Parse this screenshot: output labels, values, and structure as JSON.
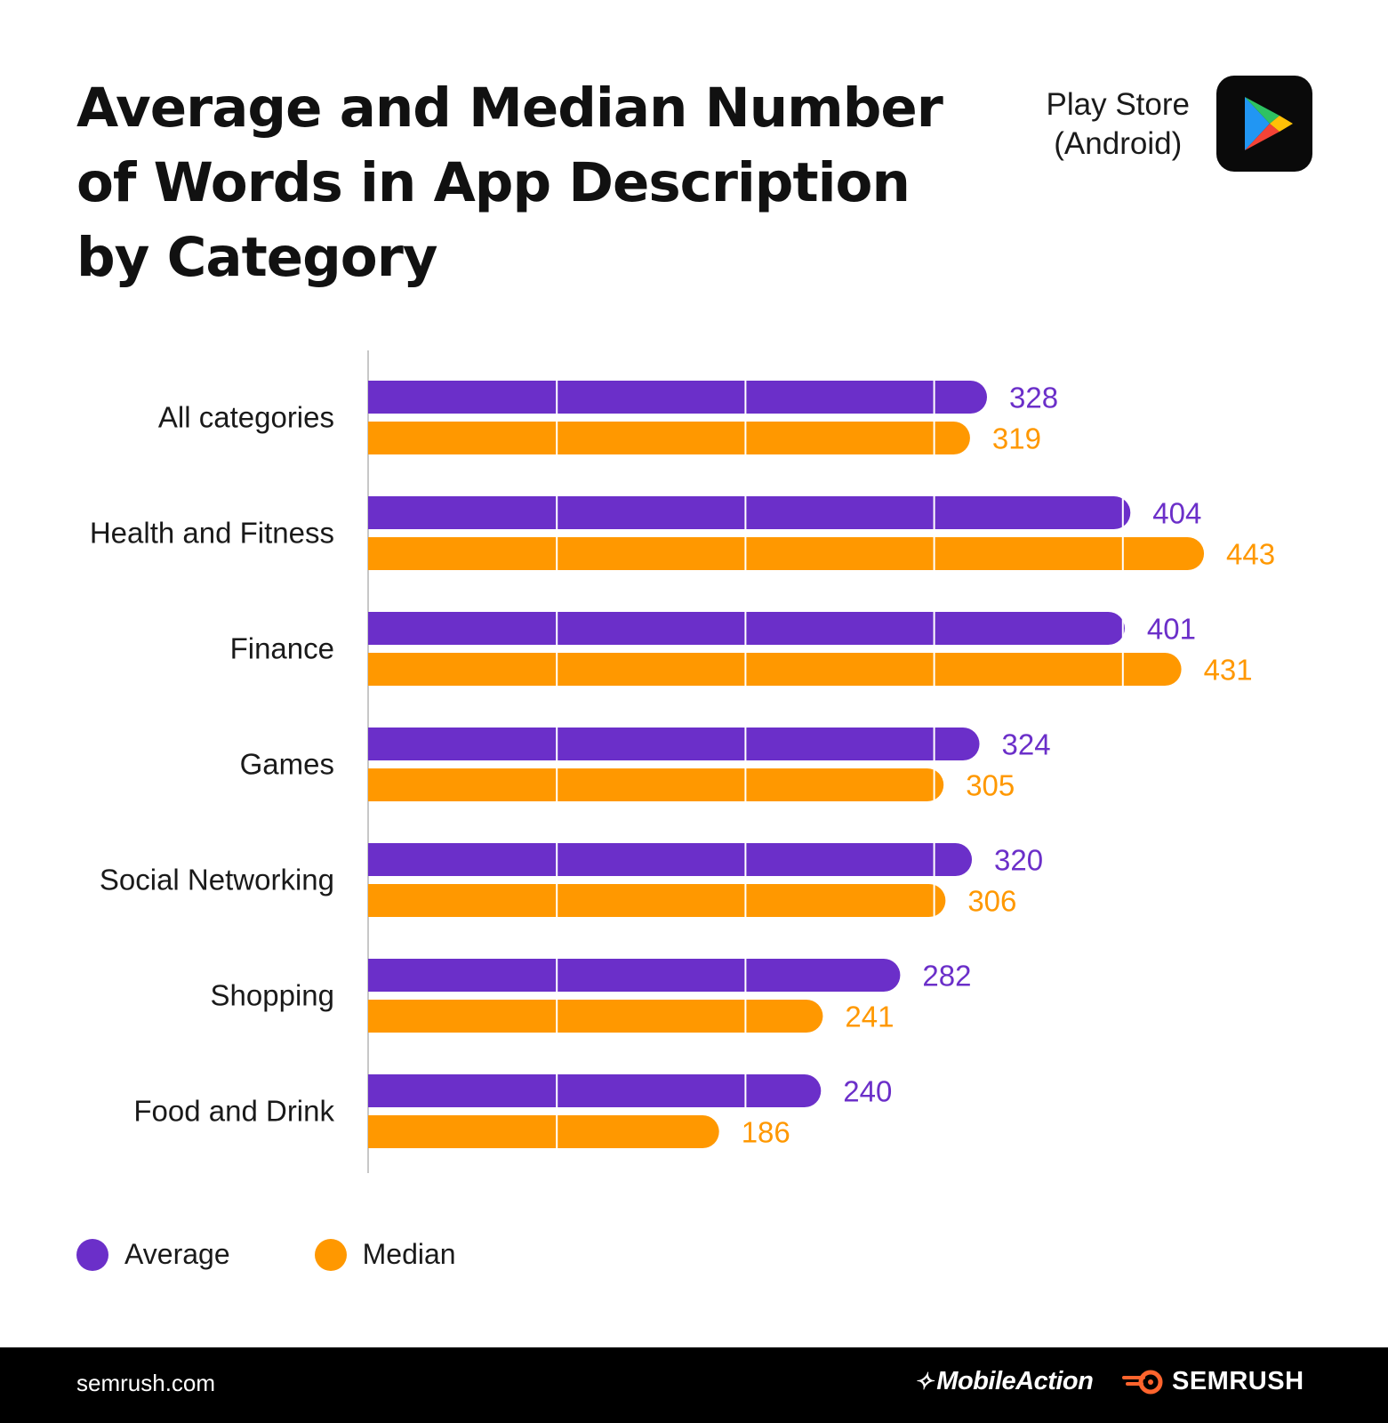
{
  "header": {
    "title": "Average and Median Number of Words in App Description by Category",
    "store_line1": "Play Store",
    "store_line2": "(Android)"
  },
  "colors": {
    "average": "#6B2FC9",
    "median": "#FF9800"
  },
  "chart_data": {
    "type": "bar",
    "orientation": "horizontal",
    "title": "Average and Median Number of Words in App Description by Category",
    "categories": [
      "All categories",
      "Health and Fitness",
      "Finance",
      "Games",
      "Social Networking",
      "Shopping",
      "Food and Drink"
    ],
    "series": [
      {
        "name": "Average",
        "color": "#6B2FC9",
        "values": [
          328,
          404,
          401,
          324,
          320,
          282,
          240
        ]
      },
      {
        "name": "Median",
        "color": "#FF9800",
        "values": [
          319,
          443,
          431,
          305,
          306,
          241,
          186
        ]
      }
    ],
    "xlim": [
      0,
      550
    ],
    "grid_step": 100,
    "xlabel": "",
    "ylabel": "",
    "legend": "bottom-left"
  },
  "legend": {
    "average_label": "Average",
    "median_label": "Median"
  },
  "footer": {
    "site": "semrush.com",
    "brand1": "MobileAction",
    "brand2": "SEMRUSH"
  }
}
